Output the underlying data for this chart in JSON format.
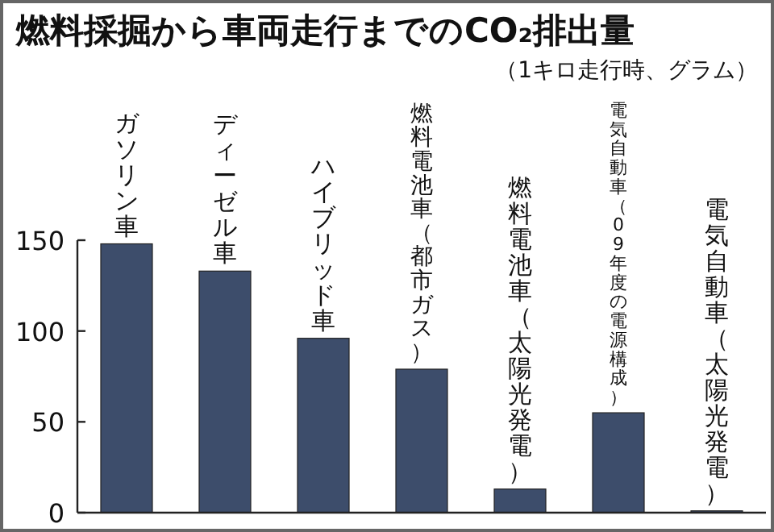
{
  "chart_data": {
    "type": "bar",
    "title": "燃料採掘から車両走行までのCO₂排出量",
    "subtitle": "（1キロ走行時、グラム）",
    "categories": [
      "ガソリン車",
      "ディーゼル車",
      "ハイブリッド車",
      "燃料電池車（都市ガス）",
      "燃料電池車（太陽光発電）",
      "電気自動車（09年度の電源構成）",
      "電気自動車（太陽光発電）"
    ],
    "values": [
      148,
      133,
      96,
      79,
      13,
      55,
      1
    ],
    "color": "#3d4d6b",
    "ylim": [
      0,
      150
    ],
    "yticks": [
      0,
      50,
      100,
      150
    ],
    "grid": false
  }
}
